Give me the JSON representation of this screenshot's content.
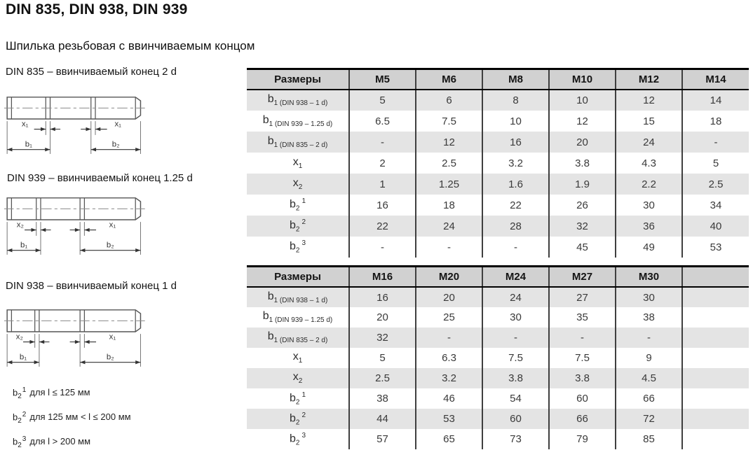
{
  "page": {
    "title": "DIN 835, DIN 938, DIN 939",
    "subtitle": "Шпилька резьбовая с ввинчиваемым концом"
  },
  "drawings": [
    {
      "label": "DIN 835 – ввинчиваемый конец 2 d",
      "dims": {
        "left": "x₁",
        "right": "x₁",
        "b_left": "b₁",
        "b_right": "b₂"
      }
    },
    {
      "label": "DIN 939 – ввинчиваемый конец 1.25 d",
      "dims": {
        "left": "x₂",
        "right": "x₁",
        "b_left": "b₁",
        "b_right": "b₂"
      }
    },
    {
      "label": "DIN 938 – ввинчиваемый конец 1 d",
      "dims": {
        "left": "x₂",
        "right": "x₁",
        "b_left": "b₁",
        "b_right": "b₂"
      }
    }
  ],
  "tables": [
    {
      "header": [
        "Размеры",
        "M5",
        "M6",
        "M8",
        "M10",
        "M12",
        "M14"
      ],
      "rows": [
        {
          "label": {
            "base": "b",
            "sub": "1",
            "note": "(DIN 938 – 1 d)"
          },
          "values": [
            "5",
            "6",
            "8",
            "10",
            "12",
            "14"
          ]
        },
        {
          "label": {
            "base": "b",
            "sub": "1",
            "note": "(DIN 939 – 1.25 d)"
          },
          "values": [
            "6.5",
            "7.5",
            "10",
            "12",
            "15",
            "18"
          ]
        },
        {
          "label": {
            "base": "b",
            "sub": "1",
            "note": "(DIN 835 – 2 d)"
          },
          "values": [
            "-",
            "12",
            "16",
            "20",
            "24",
            "-"
          ]
        },
        {
          "label": {
            "base": "x",
            "sub": "1"
          },
          "values": [
            "2",
            "2.5",
            "3.2",
            "3.8",
            "4.3",
            "5"
          ]
        },
        {
          "label": {
            "base": "x",
            "sub": "2"
          },
          "values": [
            "1",
            "1.25",
            "1.6",
            "1.9",
            "2.2",
            "2.5"
          ]
        },
        {
          "label": {
            "base": "b",
            "sub": "2",
            "sup": "1"
          },
          "values": [
            "16",
            "18",
            "22",
            "26",
            "30",
            "34"
          ]
        },
        {
          "label": {
            "base": "b",
            "sub": "2",
            "sup": "2"
          },
          "values": [
            "22",
            "24",
            "28",
            "32",
            "36",
            "40"
          ]
        },
        {
          "label": {
            "base": "b",
            "sub": "2",
            "sup": "3"
          },
          "values": [
            "-",
            "-",
            "-",
            "45",
            "49",
            "53"
          ]
        }
      ]
    },
    {
      "header": [
        "Размеры",
        "M16",
        "M20",
        "M24",
        "M27",
        "M30",
        ""
      ],
      "rows": [
        {
          "label": {
            "base": "b",
            "sub": "1",
            "note": "(DIN 938 – 1 d)"
          },
          "values": [
            "16",
            "20",
            "24",
            "27",
            "30",
            ""
          ]
        },
        {
          "label": {
            "base": "b",
            "sub": "1",
            "note": "(DIN 939 – 1.25 d)"
          },
          "values": [
            "20",
            "25",
            "30",
            "35",
            "38",
            ""
          ]
        },
        {
          "label": {
            "base": "b",
            "sub": "1",
            "note": "(DIN 835 – 2 d)"
          },
          "values": [
            "32",
            "-",
            "-",
            "-",
            "-",
            ""
          ]
        },
        {
          "label": {
            "base": "x",
            "sub": "1"
          },
          "values": [
            "5",
            "6.3",
            "7.5",
            "7.5",
            "9",
            ""
          ]
        },
        {
          "label": {
            "base": "x",
            "sub": "2"
          },
          "values": [
            "2.5",
            "3.2",
            "3.8",
            "3.8",
            "4.5",
            ""
          ]
        },
        {
          "label": {
            "base": "b",
            "sub": "2",
            "sup": "1"
          },
          "values": [
            "38",
            "46",
            "54",
            "60",
            "66",
            ""
          ]
        },
        {
          "label": {
            "base": "b",
            "sub": "2",
            "sup": "2"
          },
          "values": [
            "44",
            "53",
            "60",
            "66",
            "72",
            ""
          ]
        },
        {
          "label": {
            "base": "b",
            "sub": "2",
            "sup": "3"
          },
          "values": [
            "57",
            "65",
            "73",
            "79",
            "85",
            ""
          ]
        }
      ]
    }
  ],
  "footnotes": [
    {
      "base": "b",
      "sub": "2",
      "sup": "1",
      "text": "для l ≤ 125 мм"
    },
    {
      "base": "b",
      "sub": "2",
      "sup": "2",
      "text": "для 125 мм < l ≤ 200 мм"
    },
    {
      "base": "b",
      "sub": "2",
      "sup": "3",
      "text": "для l > 200 мм"
    }
  ],
  "colors": {
    "header_bg": "#d1d1d1",
    "row_stripe": "#e4e4e4",
    "table_rule": "#000000",
    "column_rule": "#3f3f3f",
    "drawing_line": "#555555"
  }
}
